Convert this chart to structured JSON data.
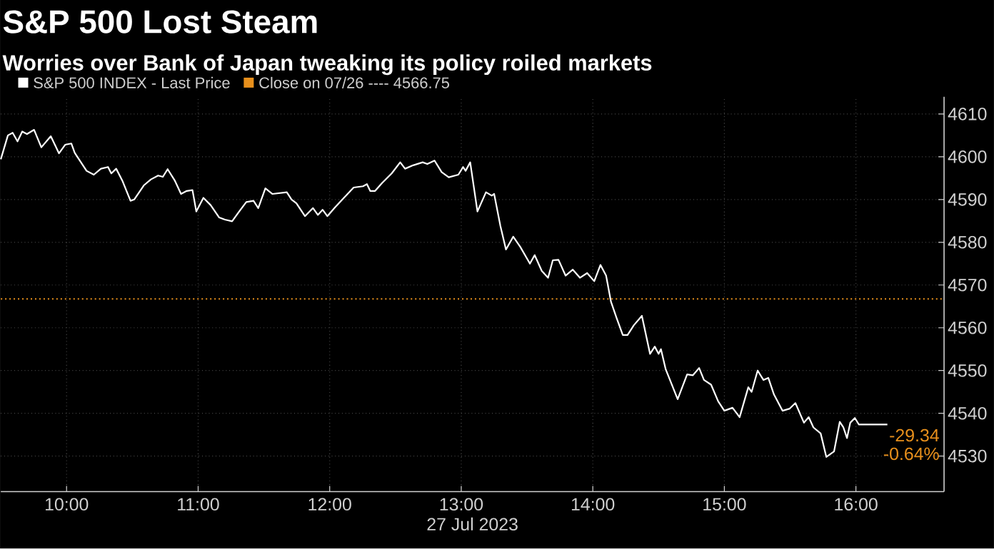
{
  "chart_data": {
    "type": "line",
    "title": "S&P 500 Lost Steam",
    "subtitle": "Worries over Bank of Japan tweaking its policy roiled markets",
    "xlabel": "27 Jul 2023",
    "xlim": [
      9.5,
      16.67
    ],
    "ylim": [
      4521.7,
      4614
    ],
    "xticks": [
      {
        "value": 10,
        "label": "10:00"
      },
      {
        "value": 11,
        "label": "11:00"
      },
      {
        "value": 12,
        "label": "12:00"
      },
      {
        "value": 13,
        "label": "13:00"
      },
      {
        "value": 14,
        "label": "14:00"
      },
      {
        "value": 15,
        "label": "15:00"
      },
      {
        "value": 16,
        "label": "16:00"
      }
    ],
    "yticks": [
      4530,
      4540,
      4550,
      4560,
      4570,
      4580,
      4590,
      4600,
      4610
    ],
    "grid": true,
    "legend": "top left",
    "line_style": "solid",
    "ref_lines": [
      {
        "axis": "y",
        "value": 4566.75,
        "label": "Close on 07/26 ---- 4566.75",
        "color": "#e8901c",
        "line_style": "dotted"
      }
    ],
    "annotations": [
      "-29.34",
      "-0.64%"
    ],
    "series": [
      {
        "name": "S&P 500 INDEX - Last Price",
        "color": "#ffffff",
        "x": [
          9.5,
          9.554,
          9.59,
          9.627,
          9.663,
          9.699,
          9.753,
          9.808,
          9.88,
          9.942,
          9.989,
          10.036,
          10.062,
          10.152,
          10.207,
          10.261,
          10.315,
          10.34,
          10.377,
          10.424,
          10.486,
          10.514,
          10.587,
          10.641,
          10.696,
          10.732,
          10.768,
          10.823,
          10.87,
          10.913,
          10.957,
          10.986,
          11.04,
          11.095,
          11.16,
          11.203,
          11.258,
          11.312,
          11.366,
          11.421,
          11.457,
          11.511,
          11.565,
          11.674,
          11.71,
          11.747,
          11.812,
          11.873,
          11.91,
          11.946,
          11.982,
          12.036,
          12.09,
          12.182,
          12.253,
          12.283,
          12.308,
          12.345,
          12.399,
          12.471,
          12.536,
          12.573,
          12.634,
          12.707,
          12.742,
          12.797,
          12.851,
          12.905,
          12.978,
          13.014,
          13.033,
          13.068,
          13.123,
          13.188,
          13.232,
          13.25,
          13.297,
          13.34,
          13.395,
          13.449,
          13.522,
          13.558,
          13.612,
          13.66,
          13.696,
          13.739,
          13.793,
          13.848,
          13.902,
          13.957,
          14.011,
          14.058,
          14.101,
          14.138,
          14.182,
          14.228,
          14.264,
          14.312,
          14.373,
          14.435,
          14.471,
          14.5,
          14.518,
          14.554,
          14.645,
          14.717,
          14.761,
          14.808,
          14.845,
          14.899,
          14.953,
          15.0,
          15.062,
          15.116,
          15.182,
          15.207,
          15.253,
          15.297,
          15.334,
          15.377,
          15.442,
          15.497,
          15.54,
          15.605,
          15.641,
          15.677,
          15.732,
          15.775,
          15.834,
          15.877,
          15.905,
          15.932,
          15.957,
          15.992,
          16.022,
          16.239
        ],
        "values": [
          4599.4,
          4605,
          4605.6,
          4603.6,
          4605.9,
          4605.3,
          4606.3,
          4602.2,
          4604.8,
          4600.8,
          4602.8,
          4603.1,
          4600.9,
          4596.7,
          4595.8,
          4597.2,
          4597.6,
          4596.1,
          4597.2,
          4594.4,
          4589.7,
          4590,
          4593.3,
          4594.7,
          4595.6,
          4595.3,
          4597.1,
          4594.4,
          4591.3,
          4592,
          4592.2,
          4587.2,
          4590.4,
          4588.7,
          4585.8,
          4585.3,
          4584.9,
          4587.2,
          4589.4,
          4589.7,
          4588,
          4592.6,
          4591.3,
          4591.7,
          4590,
          4589.1,
          4586.1,
          4588,
          4586.4,
          4587.6,
          4586.1,
          4588,
          4589.8,
          4592.8,
          4593.1,
          4593.6,
          4592,
          4592,
          4593.9,
          4596.1,
          4598.7,
          4597.2,
          4598,
          4598.7,
          4598.3,
          4599.1,
          4596.4,
          4595.2,
          4595.8,
          4597.6,
          4596.7,
          4598.7,
          4587.2,
          4591.7,
          4590.9,
          4591.3,
          4583.9,
          4578.3,
          4581.3,
          4578.9,
          4575,
          4577,
          4573.3,
          4571.7,
          4575.8,
          4575.9,
          4572.2,
          4573.6,
          4571.7,
          4572.8,
          4570.9,
          4574.7,
          4572.2,
          4566.1,
          4562.2,
          4558.3,
          4558.3,
          4560.6,
          4562.8,
          4553.9,
          4555.6,
          4553.9,
          4555,
          4550.3,
          4543.3,
          4549.1,
          4548.9,
          4550.6,
          4547.8,
          4546.7,
          4542.8,
          4540.6,
          4541.3,
          4539.1,
          4546.1,
          4545,
          4550,
          4547.8,
          4548.3,
          4544.4,
          4540.6,
          4541.1,
          4542.4,
          4537.8,
          4539.1,
          4536.7,
          4535.3,
          4529.8,
          4531.1,
          4538,
          4536.7,
          4534.2,
          4537.8,
          4538.9,
          4537.4,
          4537.4
        ]
      }
    ]
  }
}
